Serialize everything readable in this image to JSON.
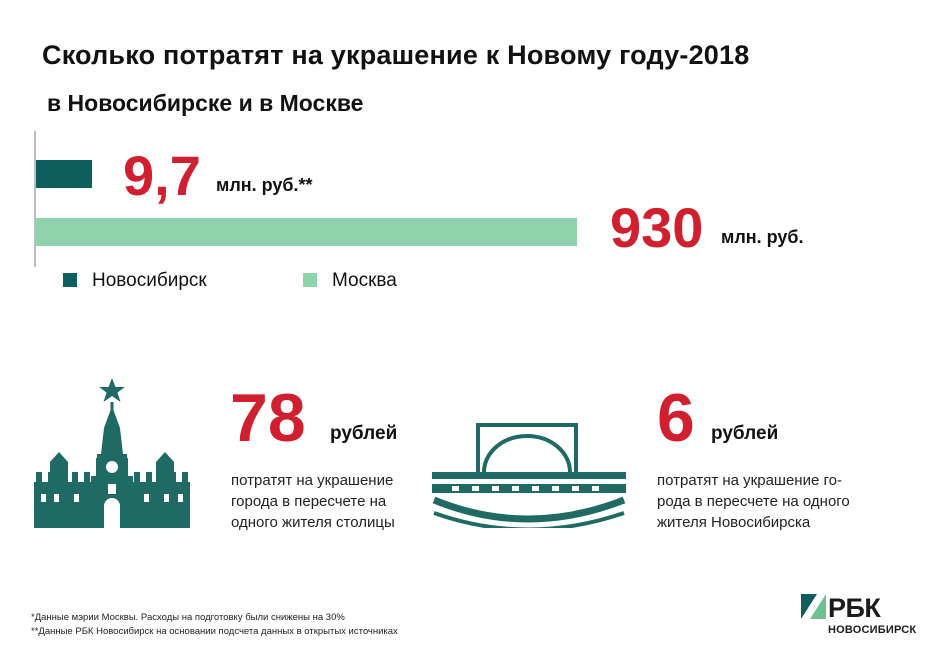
{
  "header": {
    "title": "Сколько потратят на украшение к Новому году-2018",
    "subtitle": "в Новосибирске и в Москве"
  },
  "chart_data": {
    "type": "bar",
    "orientation": "horizontal",
    "title": "Сколько потратят на украшение к Новому году-2018",
    "subtitle": "в Новосибирске и в Москве",
    "categories": [
      "Новосибирск",
      "Москва"
    ],
    "values": [
      9.7,
      930
    ],
    "value_labels": [
      "9,7",
      "930"
    ],
    "unit_labels": [
      "млн. руб.**",
      "млн. руб."
    ],
    "colors": [
      "#0e5e5d",
      "#8fd3ac"
    ],
    "legend_position": "below",
    "grid": false
  },
  "stats": {
    "moscow": {
      "value": "78",
      "unit": "рублей",
      "description": "потратят на украшение города в пересчете на одного жителя столицы"
    },
    "novosibirsk": {
      "value": "6",
      "unit": "рублей",
      "description": "потратят на украшение го-рода в пересчете на одного жителя Новосибирска"
    }
  },
  "footnotes": [
    "*Данные мэрии Москвы. Расходы на подготовку были снижены на 30%",
    "**Данные РБК Новосибирск на основании подсчета данных в открытых источниках"
  ],
  "logo": {
    "name": "РБК",
    "city": "НОВОСИБИРСК"
  },
  "colors": {
    "accent": "#d0202f",
    "dark_teal": "#0e5e5d",
    "light_green": "#8fd3ac",
    "icon": "#1f6b63"
  },
  "icons": [
    "kremlin-tower-icon",
    "bridge-icon",
    "rbc-logo-icon"
  ]
}
